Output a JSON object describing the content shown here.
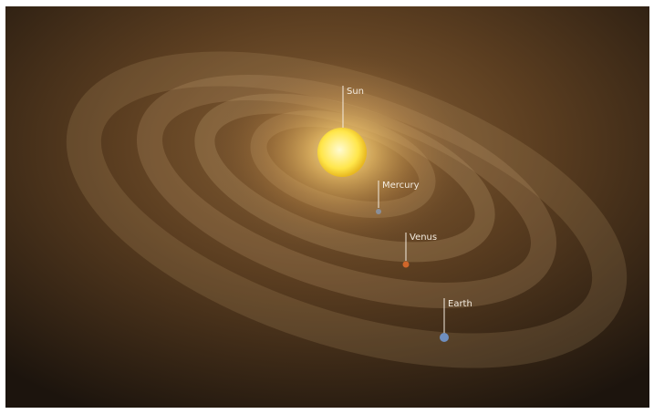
{
  "labels": {
    "sun": "Sun",
    "mercury": "Mercury",
    "venus": "Venus",
    "earth": "Earth"
  }
}
